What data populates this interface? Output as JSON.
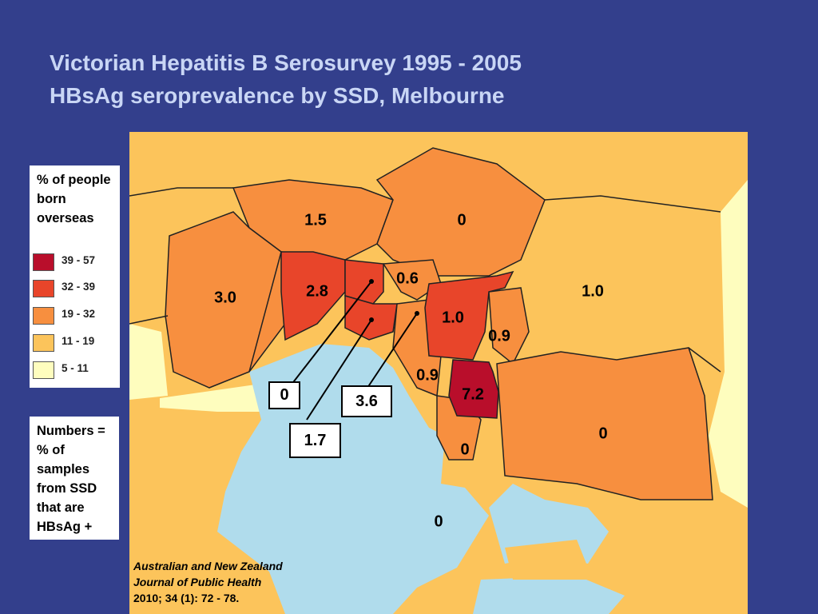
{
  "title": {
    "line1": "Victorian Hepatitis B Serosurvey 1995 - 2005",
    "line2": "HBsAg seroprevalence by SSD, Melbourne"
  },
  "legend": {
    "title": "% of people born overseas",
    "items": [
      {
        "label": "39 - 57",
        "color": "#b90e2b"
      },
      {
        "label": "32 - 39",
        "color": "#e8452a"
      },
      {
        "label": "19 - 32",
        "color": "#f78f3f"
      },
      {
        "label": "11 - 19",
        "color": "#fcc45b"
      },
      {
        "label": "5 - 11",
        "color": "#fefdbe"
      }
    ]
  },
  "note": {
    "text": "Numbers = % of samples from SSD that are HBsAg +"
  },
  "map_labels": [
    "1.5",
    "0",
    "3.0",
    "2.8",
    "0.6",
    "1.0",
    "1.0",
    "0.9",
    "0.9",
    "7.2",
    "0",
    "0",
    "0"
  ],
  "callouts": [
    "0",
    "1.7",
    "3.6"
  ],
  "citation": {
    "line1": "Australian and New Zealand",
    "line2": "Journal of Public Health",
    "line3": "2010; 34 (1): 72 - 78."
  },
  "colors": {
    "background": "#333f8c",
    "title": "#c9d6f5",
    "water": "#b0dcec",
    "outer": "#fcc45b"
  }
}
